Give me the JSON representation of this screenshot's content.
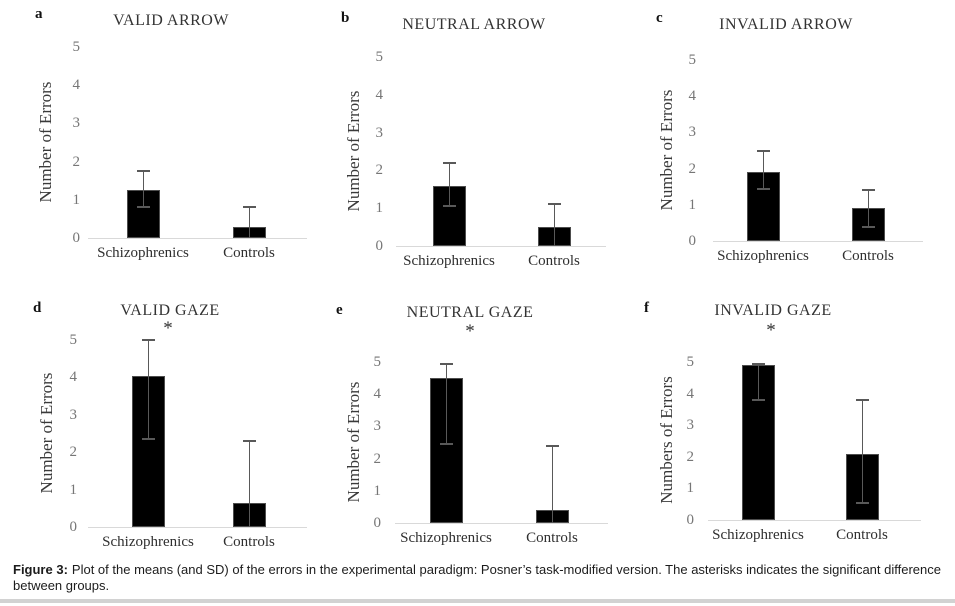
{
  "caption": {
    "label": "Figure 3:",
    "text": "Plot of the means (and SD) of the errors in the experimental paradigm: Posner’s task-modified version. The asterisks indicates the significant difference between groups."
  },
  "colors": {
    "bar": "#000000",
    "bar_border": "#4d4d4d",
    "error": "#595959",
    "axis_line": "#d9d9d9",
    "tick_text": "#767676",
    "label_text": "#2f2f2f",
    "divider": "#d2d2d2"
  },
  "sig_marker": "*",
  "chart_data": [
    {
      "type": "bar",
      "panel_label": "a",
      "title": "VALID ARROW",
      "ylabel": "Number of Errors",
      "categories": [
        "Schizophrenics",
        "Controls"
      ],
      "values": [
        1.25,
        0.3
      ],
      "error_high": [
        1.75,
        0.8
      ],
      "error_low": [
        0.8,
        null
      ],
      "significant": false,
      "ylim": [
        0,
        5
      ],
      "yticks": [
        0,
        1,
        2,
        3,
        4,
        5
      ],
      "grid": false,
      "legend": false
    },
    {
      "type": "bar",
      "panel_label": "b",
      "title": "NEUTRAL ARROW",
      "ylabel": "Number of Errors",
      "categories": [
        "Schizophrenics",
        "Controls"
      ],
      "values": [
        1.6,
        0.5
      ],
      "error_high": [
        2.2,
        1.1
      ],
      "error_low": [
        1.05,
        null
      ],
      "significant": false,
      "ylim": [
        0,
        5
      ],
      "yticks": [
        0,
        1,
        2,
        3,
        4,
        5
      ],
      "grid": false,
      "legend": false
    },
    {
      "type": "bar",
      "panel_label": "c",
      "title": "INVALID ARROW",
      "ylabel": "Number of Errors",
      "categories": [
        "Schizophrenics",
        "Controls"
      ],
      "values": [
        1.9,
        0.9
      ],
      "error_high": [
        2.5,
        1.4
      ],
      "error_low": [
        1.45,
        0.4
      ],
      "significant": false,
      "ylim": [
        0,
        5
      ],
      "yticks": [
        0,
        1,
        2,
        3,
        4,
        5
      ],
      "grid": false,
      "legend": false
    },
    {
      "type": "bar",
      "panel_label": "d",
      "title": "VALID GAZE",
      "ylabel": "Number of Errors",
      "categories": [
        "Schizophrenics",
        "Controls"
      ],
      "values": [
        4.05,
        0.65
      ],
      "error_high": [
        5.0,
        2.3
      ],
      "error_low": [
        2.35,
        null
      ],
      "significant": true,
      "ylim": [
        0,
        5
      ],
      "yticks": [
        0,
        1,
        2,
        3,
        4,
        5
      ],
      "grid": false,
      "legend": false
    },
    {
      "type": "bar",
      "panel_label": "e",
      "title": "NEUTRAL GAZE",
      "ylabel": "Number of Errors",
      "categories": [
        "Schizophrenics",
        "Controls"
      ],
      "values": [
        4.5,
        0.4
      ],
      "error_high": [
        4.95,
        2.4
      ],
      "error_low": [
        2.45,
        null
      ],
      "significant": true,
      "ylim": [
        0,
        5
      ],
      "yticks": [
        0,
        1,
        2,
        3,
        4,
        5
      ],
      "grid": false,
      "legend": false
    },
    {
      "type": "bar",
      "panel_label": "f",
      "title": "INVALID GAZE",
      "ylabel": "Numbers of Errors",
      "categories": [
        "Schizophrenics",
        "Controls"
      ],
      "values": [
        4.9,
        2.1
      ],
      "error_high": [
        4.95,
        3.8
      ],
      "error_low": [
        3.8,
        0.55
      ],
      "significant": true,
      "ylim": [
        0,
        5
      ],
      "yticks": [
        0,
        1,
        2,
        3,
        4,
        5
      ],
      "grid": false,
      "legend": false
    }
  ]
}
